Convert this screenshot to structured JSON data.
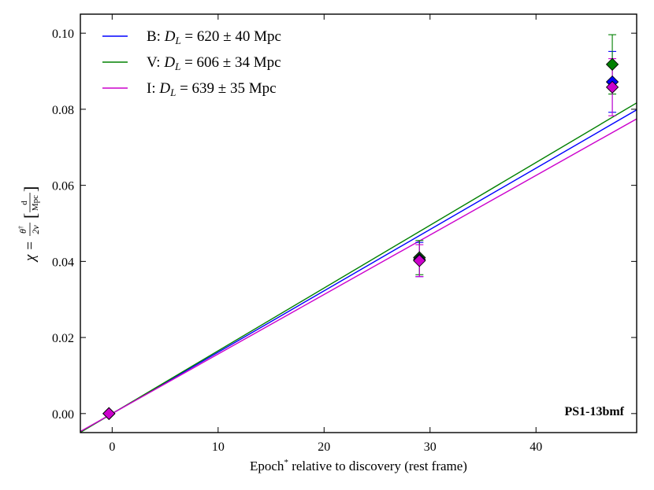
{
  "chart_data": {
    "type": "scatter",
    "title": "",
    "annotation": "PS1-13bmf",
    "xlabel_main": "Epoch",
    "xlabel_sup": "*",
    "xlabel_rest": " relative to discovery (rest frame)",
    "ylabel_lhs": "χ = ",
    "ylabel_frac_num": "θ",
    "ylabel_frac_num_sup": "†",
    "ylabel_frac_den": "2v",
    "ylabel_unit_num": "d",
    "ylabel_unit_den": "Mpc",
    "xlim": [
      -3,
      49.5
    ],
    "ylim": [
      -0.005,
      0.105
    ],
    "xticks": [
      0,
      10,
      20,
      30,
      40
    ],
    "xtick_labels": [
      "0",
      "10",
      "20",
      "30",
      "40"
    ],
    "yticks": [
      0.0,
      0.02,
      0.04,
      0.06,
      0.08,
      0.1
    ],
    "ytick_labels": [
      "0.00",
      "0.02",
      "0.04",
      "0.06",
      "0.08",
      "0.10"
    ],
    "grid": false,
    "legend_position": "top-left",
    "series": [
      {
        "name": "B",
        "label_prefix": "B: ",
        "dl_symbol": "D",
        "dl_sub": "L",
        "label_suffix": " = 620 ± 40 Mpc",
        "color": "#0000ff",
        "fit_slope": 0.001613,
        "points": [
          {
            "x": -0.3,
            "y": 0.0,
            "yerr": 0.0
          },
          {
            "x": 29.0,
            "y": 0.0405,
            "yerr": 0.0045
          },
          {
            "x": 47.2,
            "y": 0.0872,
            "yerr": 0.008
          }
        ]
      },
      {
        "name": "V",
        "label_prefix": "V: ",
        "dl_symbol": "D",
        "dl_sub": "L",
        "label_suffix": " = 606 ± 34 Mpc",
        "color": "#008000",
        "fit_slope": 0.00165,
        "points": [
          {
            "x": -0.3,
            "y": 0.0,
            "yerr": 0.0
          },
          {
            "x": 29.0,
            "y": 0.041,
            "yerr": 0.0045
          },
          {
            "x": 47.2,
            "y": 0.0918,
            "yerr": 0.0078
          }
        ]
      },
      {
        "name": "I",
        "label_prefix": "I: ",
        "dl_symbol": "D",
        "dl_sub": "L",
        "label_suffix": " = 639 ± 35 Mpc",
        "color": "#cc00cc",
        "fit_slope": 0.001565,
        "points": [
          {
            "x": -0.3,
            "y": 0.0,
            "yerr": 0.0
          },
          {
            "x": 29.0,
            "y": 0.0402,
            "yerr": 0.0042
          },
          {
            "x": 47.2,
            "y": 0.0858,
            "yerr": 0.0075
          }
        ]
      }
    ]
  }
}
